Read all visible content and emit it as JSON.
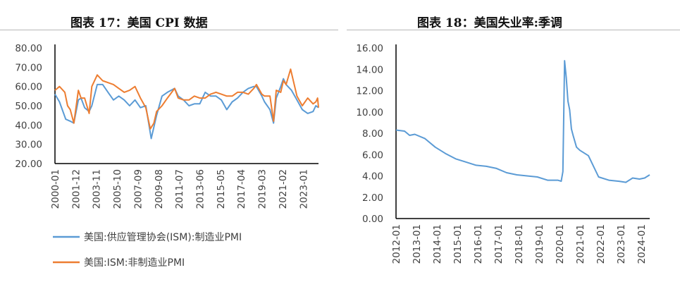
{
  "chart_data": [
    {
      "type": "line",
      "title": "图表 17：美国 CPI 数据",
      "ylim": [
        20,
        80
      ],
      "yticks": [
        "80.00",
        "70.00",
        "60.00",
        "50.00",
        "40.00",
        "30.00",
        "20.00"
      ],
      "xticks": [
        "2000-01",
        "2001-12",
        "2003-11",
        "2005-10",
        "2007-09",
        "2009-08",
        "2011-07",
        "2013-06",
        "2015-05",
        "2017-04",
        "2019-03",
        "2021-02",
        "2023-01"
      ],
      "xrange": [
        "2000-01",
        "2024-06"
      ],
      "legend": "bottom",
      "grid": false,
      "series": [
        {
          "name": "美国:供应管理协会(ISM):制造业PMI",
          "color": "#5b9bd5",
          "x": [
            "2000-01",
            "2000-06",
            "2001-01",
            "2001-06",
            "2001-10",
            "2002-03",
            "2002-06",
            "2002-10",
            "2003-03",
            "2003-06",
            "2003-12",
            "2004-06",
            "2004-12",
            "2005-06",
            "2005-12",
            "2006-06",
            "2006-12",
            "2007-06",
            "2007-12",
            "2008-06",
            "2008-12",
            "2009-06",
            "2009-12",
            "2010-06",
            "2011-02",
            "2011-06",
            "2011-12",
            "2012-06",
            "2012-12",
            "2013-06",
            "2013-12",
            "2014-06",
            "2014-12",
            "2015-06",
            "2015-12",
            "2016-06",
            "2016-12",
            "2017-06",
            "2017-12",
            "2018-06",
            "2018-09",
            "2019-03",
            "2019-06",
            "2019-12",
            "2020-04",
            "2020-07",
            "2020-12",
            "2021-03",
            "2021-06",
            "2021-12",
            "2022-06",
            "2022-12",
            "2023-06",
            "2023-12",
            "2024-03",
            "2024-06"
          ],
          "values": [
            56,
            52,
            43,
            42,
            41,
            53,
            54,
            49,
            47,
            50,
            61,
            61,
            57,
            53,
            55,
            53,
            50,
            53,
            49,
            50,
            33,
            45,
            55,
            57,
            59,
            55,
            53,
            50,
            51,
            51,
            57,
            55,
            55,
            53,
            48,
            52,
            54,
            57,
            59,
            60,
            60,
            55,
            52,
            48,
            41,
            54,
            60,
            64,
            61,
            58,
            53,
            48,
            46,
            47,
            50,
            49
          ]
        },
        {
          "name": "美国:ISM:非制造业PMI",
          "color": "#ed7d31",
          "x": [
            "2000-01",
            "2000-06",
            "2000-12",
            "2001-03",
            "2001-06",
            "2001-10",
            "2002-03",
            "2002-06",
            "2002-10",
            "2003-03",
            "2003-06",
            "2003-12",
            "2004-06",
            "2004-12",
            "2005-06",
            "2005-12",
            "2006-06",
            "2006-12",
            "2007-06",
            "2007-12",
            "2008-06",
            "2008-11",
            "2009-03",
            "2009-06",
            "2009-12",
            "2010-06",
            "2011-02",
            "2011-06",
            "2011-12",
            "2012-06",
            "2012-12",
            "2013-06",
            "2013-12",
            "2014-06",
            "2014-12",
            "2015-06",
            "2015-12",
            "2016-06",
            "2016-12",
            "2017-06",
            "2017-12",
            "2018-06",
            "2018-09",
            "2019-03",
            "2019-06",
            "2019-12",
            "2020-04",
            "2020-07",
            "2020-12",
            "2021-03",
            "2021-06",
            "2021-11",
            "2022-06",
            "2022-12",
            "2023-06",
            "2023-12",
            "2024-03",
            "2024-05",
            "2024-06"
          ],
          "values": [
            58,
            60,
            57,
            50,
            48,
            41,
            58,
            54,
            54,
            46,
            60,
            66,
            63,
            62,
            61,
            59,
            57,
            58,
            60,
            54,
            49,
            38,
            41,
            47,
            50,
            54,
            59,
            54,
            53,
            53,
            55,
            54,
            54,
            56,
            57,
            56,
            55,
            55,
            57,
            57,
            56,
            59,
            61,
            56,
            55,
            55,
            42,
            58,
            57,
            63,
            61,
            69,
            55,
            50,
            54,
            51,
            52,
            54,
            49
          ]
        }
      ]
    },
    {
      "type": "line",
      "title": "图表 18：美国失业率:季调",
      "ylim": [
        0,
        16
      ],
      "yticks": [
        "16.00",
        "14.00",
        "12.00",
        "10.00",
        "8.00",
        "6.00",
        "4.00",
        "2.00",
        "0.00"
      ],
      "xticks": [
        "2012-01",
        "2013-01",
        "2014-01",
        "2015-01",
        "2016-01",
        "2017-01",
        "2018-01",
        "2019-01",
        "2020-01",
        "2021-01",
        "2022-01",
        "2023-01",
        "2024-01"
      ],
      "xrange": [
        "2012-01",
        "2024-06"
      ],
      "grid": false,
      "series": [
        {
          "color": "#5b9bd5",
          "x": [
            "2012-01",
            "2012-06",
            "2012-09",
            "2012-12",
            "2013-06",
            "2013-12",
            "2014-06",
            "2014-12",
            "2015-06",
            "2015-12",
            "2016-06",
            "2016-12",
            "2017-06",
            "2017-12",
            "2018-06",
            "2018-12",
            "2019-06",
            "2019-12",
            "2020-02",
            "2020-03",
            "2020-04",
            "2020-05",
            "2020-06",
            "2020-07",
            "2020-08",
            "2020-09",
            "2020-11",
            "2021-01",
            "2021-06",
            "2021-12",
            "2022-06",
            "2022-12",
            "2023-04",
            "2023-08",
            "2023-12",
            "2024-03",
            "2024-06"
          ],
          "values": [
            8.3,
            8.2,
            7.8,
            7.9,
            7.5,
            6.7,
            6.1,
            5.6,
            5.3,
            5.0,
            4.9,
            4.7,
            4.3,
            4.1,
            4.0,
            3.9,
            3.6,
            3.6,
            3.5,
            4.4,
            14.8,
            13.2,
            11.0,
            10.2,
            8.4,
            7.8,
            6.7,
            6.4,
            5.9,
            3.9,
            3.6,
            3.5,
            3.4,
            3.8,
            3.7,
            3.8,
            4.1
          ]
        }
      ]
    }
  ]
}
